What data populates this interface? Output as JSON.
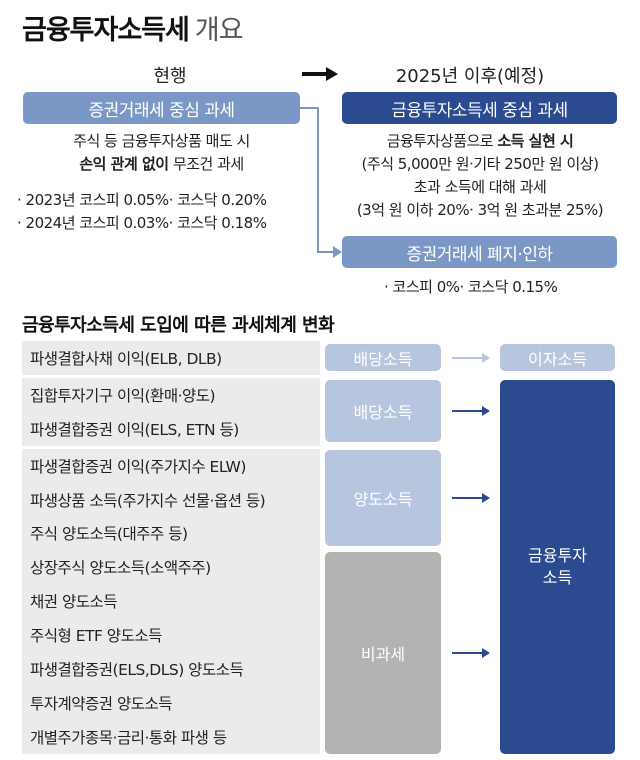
{
  "title": {
    "main": "금융투자소득세",
    "sub": "개요"
  },
  "current": {
    "heading": "현행",
    "tag": "증권거래세 중심 과세",
    "desc_line1": "주식 등 금융투자상품 매도 시",
    "desc_line2_bold": "손익 관계 없이",
    "desc_line2_rest": " 무조건 과세",
    "bullets": [
      "· 2023년 코스피 0.05%· 코스닥 0.20%",
      "· 2024년 코스피 0.03%· 코스닥 0.18%"
    ]
  },
  "future": {
    "heading": "2025년 이후(예정)",
    "tag": "금융투자소득세 중심 과세",
    "desc_line1_pre": "금융투자상품으로 ",
    "desc_line1_bold": "소득 실현 시",
    "desc_line2": "(주식 5,000만 원·기타 250만 원 이상)",
    "desc_line3": "초과 소득에 대해 과세",
    "desc_line4": "(3억 원 이하 20%· 3억 원 초과분 25%)",
    "tag2": "증권거래세 폐지·인하",
    "bullet": "· 코스피 0%· 코스닥 0.15%"
  },
  "section_title": "금융투자소득세 도입에 따른 과세체계 변화",
  "rows": [
    "파생결합사채 이익(ELB, DLB)",
    "집합투자기구 이익(환매·양도)",
    "파생결합증권 이익(ELS, ETN 등)",
    "파생결합증권 이익(주가지수 ELW)",
    "파생상품 소득(주가지수 선물·옵션 등)",
    "주식 양도소득(대주주 등)",
    "상장주식 양도소득(소액주주)",
    "채권 양도소득",
    "주식형 ETF 양도소득",
    "파생결합증권(ELS,DLS) 양도소득",
    "투자계약증권 양도소득",
    "개별주가종목·금리·통화 파생 등"
  ],
  "categories": {
    "dividend1": "배당소득",
    "dividend2": "배당소득",
    "transfer": "양도소득",
    "nontax": "비과세",
    "interest": "이자소득",
    "fin_line1": "금융투자",
    "fin_line2": "소득"
  },
  "colors": {
    "light_blue": "#7b97c6",
    "navy": "#2b4a8f",
    "cat_light": "#b7c5df",
    "cat_gray": "#b3b3b3",
    "row_bg": "#ebebeb",
    "arrow_dark": "#2b4a8f",
    "arrow_light": "#b7c5df"
  },
  "icons": [
    "right-arrow-icon"
  ]
}
